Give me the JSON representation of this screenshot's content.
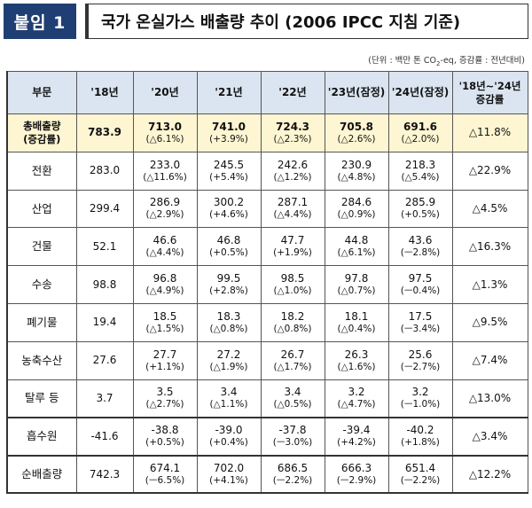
{
  "header": {
    "badge": "붙임 1",
    "title": "국가 온실가스 배출량 추이 (2006 IPCC 지침 기준)"
  },
  "unit_note": {
    "prefix": "(단위 : 백만 톤 CO",
    "sub": "2",
    "suffix": "-eq, 증감률 : 전년대비)"
  },
  "table": {
    "columns": [
      "부문",
      "'18년",
      "'20년",
      "'21년",
      "'22년",
      "'23년(잠정)",
      "'24년(잠정)"
    ],
    "rate_header": [
      "'18년~'24년",
      "증감률"
    ],
    "rows": [
      {
        "label": [
          "총배출량",
          "(증감률)"
        ],
        "base": "783.9",
        "cells": [
          [
            "713.0",
            "(△6.1%)"
          ],
          [
            "741.0",
            "(+3.9%)"
          ],
          [
            "724.3",
            "(△2.3%)"
          ],
          [
            "705.8",
            "(△2.6%)"
          ],
          [
            "691.6",
            "(△2.0%)"
          ]
        ],
        "rate": "△11.8%"
      },
      {
        "label": [
          "전환"
        ],
        "base": "283.0",
        "cells": [
          [
            "233.0",
            "(△11.6%)"
          ],
          [
            "245.5",
            "(+5.4%)"
          ],
          [
            "242.6",
            "(△1.2%)"
          ],
          [
            "230.9",
            "(△4.8%)"
          ],
          [
            "218.3",
            "(△5.4%)"
          ]
        ],
        "rate": "△22.9%"
      },
      {
        "label": [
          "산업"
        ],
        "base": "299.4",
        "cells": [
          [
            "286.9",
            "(△2.9%)"
          ],
          [
            "300.2",
            "(+4.6%)"
          ],
          [
            "287.1",
            "(△4.4%)"
          ],
          [
            "284.6",
            "(△0.9%)"
          ],
          [
            "285.9",
            "(+0.5%)"
          ]
        ],
        "rate": "△4.5%"
      },
      {
        "label": [
          "건물"
        ],
        "base": "52.1",
        "cells": [
          [
            "46.6",
            "(△4.4%)"
          ],
          [
            "46.8",
            "(+0.5%)"
          ],
          [
            "47.7",
            "(+1.9%)"
          ],
          [
            "44.8",
            "(△6.1%)"
          ],
          [
            "43.6",
            "(ㅡ2.8%)"
          ]
        ],
        "rate": "△16.3%"
      },
      {
        "label": [
          "수송"
        ],
        "base": "98.8",
        "cells": [
          [
            "96.8",
            "(△4.9%)"
          ],
          [
            "99.5",
            "(+2.8%)"
          ],
          [
            "98.5",
            "(△1.0%)"
          ],
          [
            "97.8",
            "(△0.7%)"
          ],
          [
            "97.5",
            "(ㅡ0.4%)"
          ]
        ],
        "rate": "△1.3%"
      },
      {
        "label": [
          "폐기물"
        ],
        "base": "19.4",
        "cells": [
          [
            "18.5",
            "(△1.5%)"
          ],
          [
            "18.3",
            "(△0.8%)"
          ],
          [
            "18.2",
            "(△0.8%)"
          ],
          [
            "18.1",
            "(△0.4%)"
          ],
          [
            "17.5",
            "(ㅡ3.4%)"
          ]
        ],
        "rate": "△9.5%"
      },
      {
        "label": [
          "농축수산"
        ],
        "base": "27.6",
        "cells": [
          [
            "27.7",
            "(+1.1%)"
          ],
          [
            "27.2",
            "(△1.9%)"
          ],
          [
            "26.7",
            "(△1.7%)"
          ],
          [
            "26.3",
            "(△1.6%)"
          ],
          [
            "25.6",
            "(ㅡ2.7%)"
          ]
        ],
        "rate": "△7.4%"
      },
      {
        "label": [
          "탈루 등"
        ],
        "base": "3.7",
        "cells": [
          [
            "3.5",
            "(△2.7%)"
          ],
          [
            "3.4",
            "(△1.1%)"
          ],
          [
            "3.4",
            "(△0.5%)"
          ],
          [
            "3.2",
            "(△4.7%)"
          ],
          [
            "3.2",
            "(ㅡ1.0%)"
          ]
        ],
        "rate": "△13.0%"
      },
      {
        "label": [
          "흡수원"
        ],
        "base": "-41.6",
        "cells": [
          [
            "-38.8",
            "(+0.5%)"
          ],
          [
            "-39.0",
            "(+0.4%)"
          ],
          [
            "-37.8",
            "(ㅡ3.0%)"
          ],
          [
            "-39.4",
            "(+4.2%)"
          ],
          [
            "-40.2",
            "(+1.8%)"
          ]
        ],
        "rate": "△3.4%"
      },
      {
        "label": [
          "순배출량"
        ],
        "base": "742.3",
        "cells": [
          [
            "674.1",
            "(ㅡ6.5%)"
          ],
          [
            "702.0",
            "(+4.1%)"
          ],
          [
            "686.5",
            "(ㅡ2.2%)"
          ],
          [
            "666.3",
            "(ㅡ2.9%)"
          ],
          [
            "651.4",
            "(ㅡ2.2%)"
          ]
        ],
        "rate": "△12.2%"
      }
    ]
  }
}
